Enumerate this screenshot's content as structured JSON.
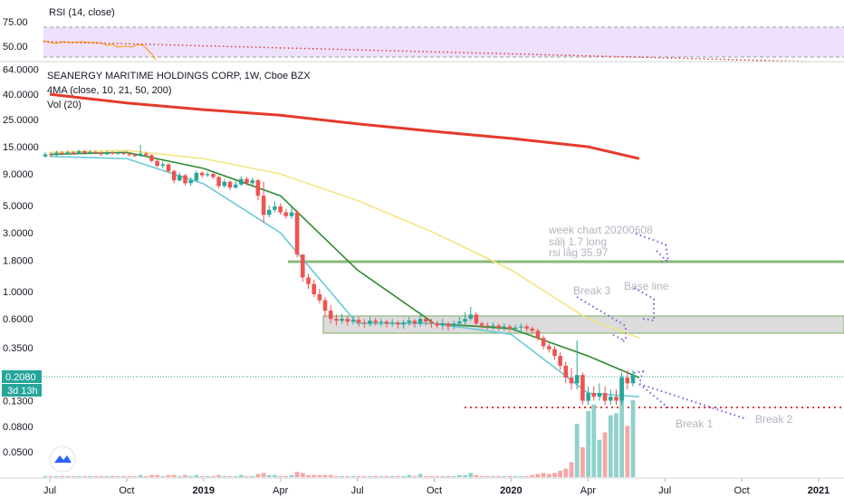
{
  "rsi": {
    "label": "RSI (14, close)",
    "ticks": [
      "75.00",
      "50.00"
    ],
    "upper": 70,
    "lower": 30
  },
  "header": {
    "symbol": "SEANERGY MARITIME HOLDINGS CORP, 1W, Cboe BZX",
    "ma_label": "4MA (close, 10, 21, 50, 200)",
    "vol_label": "Vol (20)"
  },
  "price_badge": {
    "price": "0.2080",
    "countdown": "3d 13h"
  },
  "annotations": {
    "week_chart": "week chart  20200608",
    "salj": "sälj 1.7 long",
    "rsi_lag": "rsi låg 35.97",
    "break3": "Break 3",
    "base_line": "Base line",
    "break1": "Break 1",
    "break2": "Break 2"
  },
  "colors": {
    "up": "#26a69a",
    "down": "#ef5350",
    "ma10": "#5fc9d4",
    "ma21": "#2e8b2e",
    "ma50": "#f5e27a",
    "ma200": "#e53a2b",
    "rsi_band": "#ede1fb",
    "support": "#e53935",
    "resistance": "#8bb97a",
    "annotation": "#7b5dd6"
  },
  "chart_data": {
    "type": "candlestick",
    "title": "SEANERGY MARITIME HOLDINGS CORP, 1W, Cboe BZX",
    "y_scale": "log",
    "y_ticks": [
      "64.0000",
      "40.0000",
      "25.0000",
      "15.0000",
      "9.0000",
      "5.0000",
      "3.0000",
      "1.8000",
      "1.0000",
      "0.6000",
      "0.3500",
      "0.1300",
      "0.0800",
      "0.0500"
    ],
    "x_ticks": [
      "Jul",
      "Oct",
      "2019",
      "Apr",
      "Jul",
      "Oct",
      "2020",
      "Apr",
      "Jul",
      "Oct",
      "2021"
    ],
    "last_price": 0.208,
    "horizontal_lines": [
      {
        "name": "resistance",
        "value": 1.75
      },
      {
        "name": "support",
        "value": 0.115
      }
    ],
    "zones": [
      {
        "low": 0.47,
        "high": 0.65
      }
    ],
    "series": [
      {
        "name": "MA200",
        "points": [
          [
            "2018-07",
            40
          ],
          [
            "2018-10",
            34
          ],
          [
            "2019-01",
            30
          ],
          [
            "2019-04",
            27
          ],
          [
            "2019-07",
            23
          ],
          [
            "2019-10",
            20
          ],
          [
            "2020-01",
            17.5
          ],
          [
            "2020-04",
            15
          ],
          [
            "2020-06",
            12
          ]
        ]
      },
      {
        "name": "MA50",
        "points": [
          [
            "2018-07",
            13.5
          ],
          [
            "2018-10",
            14
          ],
          [
            "2019-01",
            12
          ],
          [
            "2019-04",
            9
          ],
          [
            "2019-07",
            5.5
          ],
          [
            "2019-10",
            3
          ],
          [
            "2020-01",
            1.5
          ],
          [
            "2020-04",
            0.6
          ],
          [
            "2020-06",
            0.42
          ]
        ]
      },
      {
        "name": "MA21",
        "points": [
          [
            "2018-07",
            13
          ],
          [
            "2018-10",
            13.5
          ],
          [
            "2019-01",
            10
          ],
          [
            "2019-04",
            6
          ],
          [
            "2019-07",
            1.5
          ],
          [
            "2019-10",
            0.55
          ],
          [
            "2020-01",
            0.5
          ],
          [
            "2020-04",
            0.3
          ],
          [
            "2020-06",
            0.2
          ]
        ]
      },
      {
        "name": "MA10",
        "points": [
          [
            "2018-07",
            12.5
          ],
          [
            "2018-10",
            12
          ],
          [
            "2019-01",
            7.5
          ],
          [
            "2019-04",
            3
          ],
          [
            "2019-07",
            0.55
          ],
          [
            "2019-10",
            0.55
          ],
          [
            "2020-01",
            0.45
          ],
          [
            "2020-04",
            0.15
          ],
          [
            "2020-06",
            0.14
          ]
        ]
      }
    ],
    "candles": [
      [
        12.5,
        13.0,
        13.6,
        12.2
      ],
      [
        13.0,
        12.8,
        13.5,
        12.4
      ],
      [
        12.8,
        13.4,
        13.9,
        12.6
      ],
      [
        13.4,
        13.1,
        13.8,
        12.8
      ],
      [
        13.1,
        13.5,
        14.0,
        12.9
      ],
      [
        13.5,
        13.2,
        13.9,
        12.9
      ],
      [
        13.2,
        13.8,
        14.2,
        13.0
      ],
      [
        13.8,
        13.3,
        14.0,
        13.0
      ],
      [
        13.3,
        13.6,
        14.1,
        13.1
      ],
      [
        13.6,
        13.4,
        13.9,
        13.0
      ],
      [
        13.4,
        13.0,
        13.7,
        12.7
      ],
      [
        13.0,
        13.5,
        13.9,
        12.8
      ],
      [
        13.5,
        13.2,
        13.8,
        12.9
      ],
      [
        13.2,
        13.4,
        13.7,
        12.9
      ],
      [
        13.4,
        13.1,
        13.6,
        12.8
      ],
      [
        13.1,
        12.9,
        13.5,
        12.5
      ],
      [
        12.9,
        12.6,
        13.2,
        12.3
      ],
      [
        12.6,
        13.2,
        15.5,
        12.4
      ],
      [
        13.2,
        12.8,
        13.6,
        12.5
      ],
      [
        12.8,
        11.5,
        13.0,
        11.2
      ],
      [
        11.5,
        10.5,
        11.8,
        10.2
      ],
      [
        10.5,
        10.8,
        11.4,
        10.0
      ],
      [
        10.8,
        9.5,
        11.0,
        9.2
      ],
      [
        9.5,
        8.0,
        9.8,
        7.6
      ],
      [
        8.0,
        8.8,
        9.3,
        7.8
      ],
      [
        8.8,
        7.6,
        9.0,
        7.3
      ],
      [
        7.6,
        8.0,
        8.5,
        7.2
      ],
      [
        8.0,
        9.2,
        9.6,
        7.8
      ],
      [
        9.2,
        8.8,
        9.5,
        8.4
      ],
      [
        8.8,
        9.0,
        9.4,
        8.5
      ],
      [
        9.0,
        8.5,
        9.2,
        8.2
      ],
      [
        8.5,
        7.2,
        8.7,
        6.9
      ],
      [
        7.2,
        7.8,
        8.2,
        7.0
      ],
      [
        7.8,
        7.0,
        8.0,
        6.7
      ],
      [
        7.0,
        7.4,
        7.9,
        6.8
      ],
      [
        7.4,
        8.2,
        8.6,
        7.2
      ],
      [
        8.2,
        7.6,
        8.5,
        7.3
      ],
      [
        7.6,
        8.0,
        8.4,
        7.3
      ],
      [
        8.0,
        6.0,
        8.2,
        5.5
      ],
      [
        6.0,
        4.2,
        7.8,
        3.6
      ],
      [
        4.2,
        4.6,
        5.0,
        4.0
      ],
      [
        4.6,
        4.9,
        5.4,
        4.4
      ],
      [
        4.9,
        4.4,
        5.2,
        4.2
      ],
      [
        4.4,
        4.1,
        4.7,
        3.9
      ],
      [
        4.1,
        4.4,
        5.0,
        3.9
      ],
      [
        4.4,
        2.0,
        4.6,
        1.9
      ],
      [
        2.0,
        1.3,
        2.0,
        1.2
      ],
      [
        1.3,
        1.15,
        1.4,
        1.05
      ],
      [
        1.15,
        0.95,
        1.25,
        0.9
      ],
      [
        0.95,
        0.85,
        1.05,
        0.8
      ],
      [
        0.85,
        0.7,
        0.9,
        0.62
      ],
      [
        0.7,
        0.6,
        0.78,
        0.55
      ],
      [
        0.6,
        0.58,
        0.65,
        0.53
      ],
      [
        0.58,
        0.6,
        0.66,
        0.55
      ],
      [
        0.6,
        0.57,
        0.64,
        0.53
      ],
      [
        0.57,
        0.59,
        0.63,
        0.54
      ],
      [
        0.59,
        0.56,
        0.62,
        0.52
      ],
      [
        0.56,
        0.55,
        0.6,
        0.51
      ],
      [
        0.55,
        0.58,
        0.62,
        0.52
      ],
      [
        0.58,
        0.56,
        0.61,
        0.53
      ],
      [
        0.56,
        0.57,
        0.6,
        0.52
      ],
      [
        0.57,
        0.55,
        0.59,
        0.51
      ],
      [
        0.55,
        0.56,
        0.6,
        0.52
      ],
      [
        0.56,
        0.54,
        0.58,
        0.5
      ],
      [
        0.54,
        0.56,
        0.59,
        0.5
      ],
      [
        0.56,
        0.58,
        0.62,
        0.53
      ],
      [
        0.58,
        0.55,
        0.6,
        0.51
      ],
      [
        0.55,
        0.6,
        0.68,
        0.52
      ],
      [
        0.6,
        0.57,
        0.63,
        0.53
      ],
      [
        0.57,
        0.55,
        0.6,
        0.51
      ],
      [
        0.55,
        0.53,
        0.58,
        0.5
      ],
      [
        0.53,
        0.55,
        0.6,
        0.49
      ],
      [
        0.55,
        0.52,
        0.57,
        0.48
      ],
      [
        0.52,
        0.55,
        0.58,
        0.49
      ],
      [
        0.55,
        0.57,
        0.62,
        0.52
      ],
      [
        0.57,
        0.6,
        0.68,
        0.54
      ],
      [
        0.6,
        0.65,
        0.75,
        0.58
      ],
      [
        0.65,
        0.55,
        0.68,
        0.52
      ],
      [
        0.55,
        0.53,
        0.57,
        0.5
      ],
      [
        0.53,
        0.52,
        0.56,
        0.49
      ],
      [
        0.52,
        0.53,
        0.56,
        0.49
      ],
      [
        0.53,
        0.51,
        0.55,
        0.48
      ],
      [
        0.51,
        0.52,
        0.55,
        0.48
      ],
      [
        0.52,
        0.5,
        0.54,
        0.47
      ],
      [
        0.5,
        0.51,
        0.54,
        0.47
      ],
      [
        0.51,
        0.52,
        0.55,
        0.48
      ],
      [
        0.52,
        0.5,
        0.54,
        0.47
      ],
      [
        0.5,
        0.48,
        0.52,
        0.45
      ],
      [
        0.48,
        0.42,
        0.5,
        0.4
      ],
      [
        0.42,
        0.36,
        0.44,
        0.34
      ],
      [
        0.36,
        0.34,
        0.38,
        0.32
      ],
      [
        0.34,
        0.3,
        0.36,
        0.28
      ],
      [
        0.3,
        0.25,
        0.32,
        0.23
      ],
      [
        0.25,
        0.2,
        0.27,
        0.18
      ],
      [
        0.2,
        0.18,
        0.24,
        0.16
      ],
      [
        0.18,
        0.21,
        0.4,
        0.16
      ],
      [
        0.21,
        0.13,
        0.22,
        0.12
      ],
      [
        0.13,
        0.15,
        0.17,
        0.12
      ],
      [
        0.15,
        0.14,
        0.17,
        0.13
      ],
      [
        0.14,
        0.15,
        0.18,
        0.13
      ],
      [
        0.15,
        0.13,
        0.17,
        0.12
      ],
      [
        0.13,
        0.14,
        0.16,
        0.12
      ],
      [
        0.14,
        0.13,
        0.16,
        0.12
      ],
      [
        0.13,
        0.2,
        0.22,
        0.12
      ],
      [
        0.2,
        0.18,
        0.23,
        0.16
      ],
      [
        0.18,
        0.21,
        0.23,
        0.17
      ]
    ],
    "volume": [
      [
        1,
        "up"
      ],
      [
        1,
        "down"
      ],
      [
        1,
        "up"
      ],
      [
        1,
        "down"
      ],
      [
        1,
        "up"
      ],
      [
        1,
        "down"
      ],
      [
        1,
        "up"
      ],
      [
        1,
        "down"
      ],
      [
        1,
        "up"
      ],
      [
        1,
        "down"
      ],
      [
        1,
        "down"
      ],
      [
        1,
        "up"
      ],
      [
        1,
        "down"
      ],
      [
        1,
        "up"
      ],
      [
        1,
        "down"
      ],
      [
        1,
        "down"
      ],
      [
        1,
        "down"
      ],
      [
        2,
        "up"
      ],
      [
        1,
        "down"
      ],
      [
        2,
        "down"
      ],
      [
        2,
        "down"
      ],
      [
        1,
        "up"
      ],
      [
        2,
        "down"
      ],
      [
        2,
        "down"
      ],
      [
        1,
        "up"
      ],
      [
        2,
        "down"
      ],
      [
        1,
        "up"
      ],
      [
        2,
        "up"
      ],
      [
        1,
        "down"
      ],
      [
        1,
        "up"
      ],
      [
        1,
        "down"
      ],
      [
        2,
        "down"
      ],
      [
        1,
        "up"
      ],
      [
        1,
        "down"
      ],
      [
        1,
        "up"
      ],
      [
        2,
        "up"
      ],
      [
        1,
        "down"
      ],
      [
        1,
        "up"
      ],
      [
        3,
        "down"
      ],
      [
        4,
        "down"
      ],
      [
        2,
        "up"
      ],
      [
        2,
        "up"
      ],
      [
        1,
        "down"
      ],
      [
        1,
        "down"
      ],
      [
        2,
        "up"
      ],
      [
        5,
        "down"
      ],
      [
        4,
        "down"
      ],
      [
        2,
        "down"
      ],
      [
        2,
        "down"
      ],
      [
        2,
        "down"
      ],
      [
        2,
        "down"
      ],
      [
        2,
        "down"
      ],
      [
        1,
        "down"
      ],
      [
        1,
        "up"
      ],
      [
        1,
        "down"
      ],
      [
        1,
        "up"
      ],
      [
        1,
        "down"
      ],
      [
        1,
        "down"
      ],
      [
        1,
        "up"
      ],
      [
        1,
        "down"
      ],
      [
        1,
        "up"
      ],
      [
        1,
        "down"
      ],
      [
        1,
        "up"
      ],
      [
        1,
        "down"
      ],
      [
        1,
        "up"
      ],
      [
        2,
        "up"
      ],
      [
        1,
        "down"
      ],
      [
        3,
        "up"
      ],
      [
        1,
        "down"
      ],
      [
        1,
        "down"
      ],
      [
        1,
        "down"
      ],
      [
        1,
        "up"
      ],
      [
        1,
        "down"
      ],
      [
        1,
        "up"
      ],
      [
        2,
        "up"
      ],
      [
        2,
        "up"
      ],
      [
        4,
        "up"
      ],
      [
        2,
        "down"
      ],
      [
        1,
        "down"
      ],
      [
        1,
        "down"
      ],
      [
        1,
        "up"
      ],
      [
        1,
        "down"
      ],
      [
        1,
        "up"
      ],
      [
        1,
        "down"
      ],
      [
        1,
        "up"
      ],
      [
        1,
        "up"
      ],
      [
        1,
        "down"
      ],
      [
        2,
        "down"
      ],
      [
        3,
        "down"
      ],
      [
        4,
        "down"
      ],
      [
        3,
        "down"
      ],
      [
        4,
        "down"
      ],
      [
        6,
        "down"
      ],
      [
        8,
        "down"
      ],
      [
        14,
        "down"
      ],
      [
        50,
        "up"
      ],
      [
        28,
        "down"
      ],
      [
        62,
        "up"
      ],
      [
        68,
        "up"
      ],
      [
        35,
        "up"
      ],
      [
        42,
        "down"
      ],
      [
        58,
        "up"
      ],
      [
        60,
        "up"
      ],
      [
        95,
        "up"
      ],
      [
        48,
        "down"
      ],
      [
        72,
        "up"
      ]
    ]
  }
}
